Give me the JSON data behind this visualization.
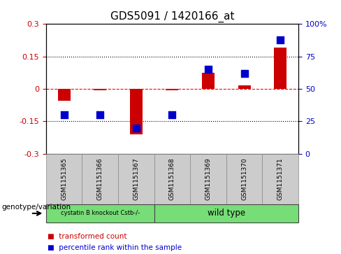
{
  "title": "GDS5091 / 1420166_at",
  "samples": [
    "GSM1151365",
    "GSM1151366",
    "GSM1151367",
    "GSM1151368",
    "GSM1151369",
    "GSM1151370",
    "GSM1151371"
  ],
  "transformed_count": [
    -0.055,
    -0.005,
    -0.21,
    -0.005,
    0.075,
    0.015,
    0.19
  ],
  "percentile_rank": [
    30,
    30,
    20,
    30,
    65,
    62,
    88
  ],
  "ylim_left": [
    -0.3,
    0.3
  ],
  "ylim_right": [
    0,
    100
  ],
  "yticks_left": [
    -0.3,
    -0.15,
    0.0,
    0.15,
    0.3
  ],
  "yticks_right": [
    0,
    25,
    50,
    75,
    100
  ],
  "ytick_labels_left": [
    "-0.3",
    "-0.15",
    "0",
    "0.15",
    "0.3"
  ],
  "ytick_labels_right": [
    "0",
    "25",
    "50",
    "75",
    "100%"
  ],
  "bar_color": "#CC0000",
  "dot_color": "#0000CC",
  "bar_width": 0.35,
  "dot_size": 50,
  "legend_bar_label": "transformed count",
  "legend_dot_label": "percentile rank within the sample",
  "genotype_label": "genotype/variation",
  "tick_color_left": "#CC0000",
  "tick_color_right": "#0000CC",
  "group1_label": "cystatin B knockout Cstb-/-",
  "group1_count": 3,
  "group2_label": "wild type",
  "group2_count": 4,
  "group_color": "#77DD77",
  "sample_box_color": "#CCCCCC",
  "sample_box_edge": "#888888"
}
